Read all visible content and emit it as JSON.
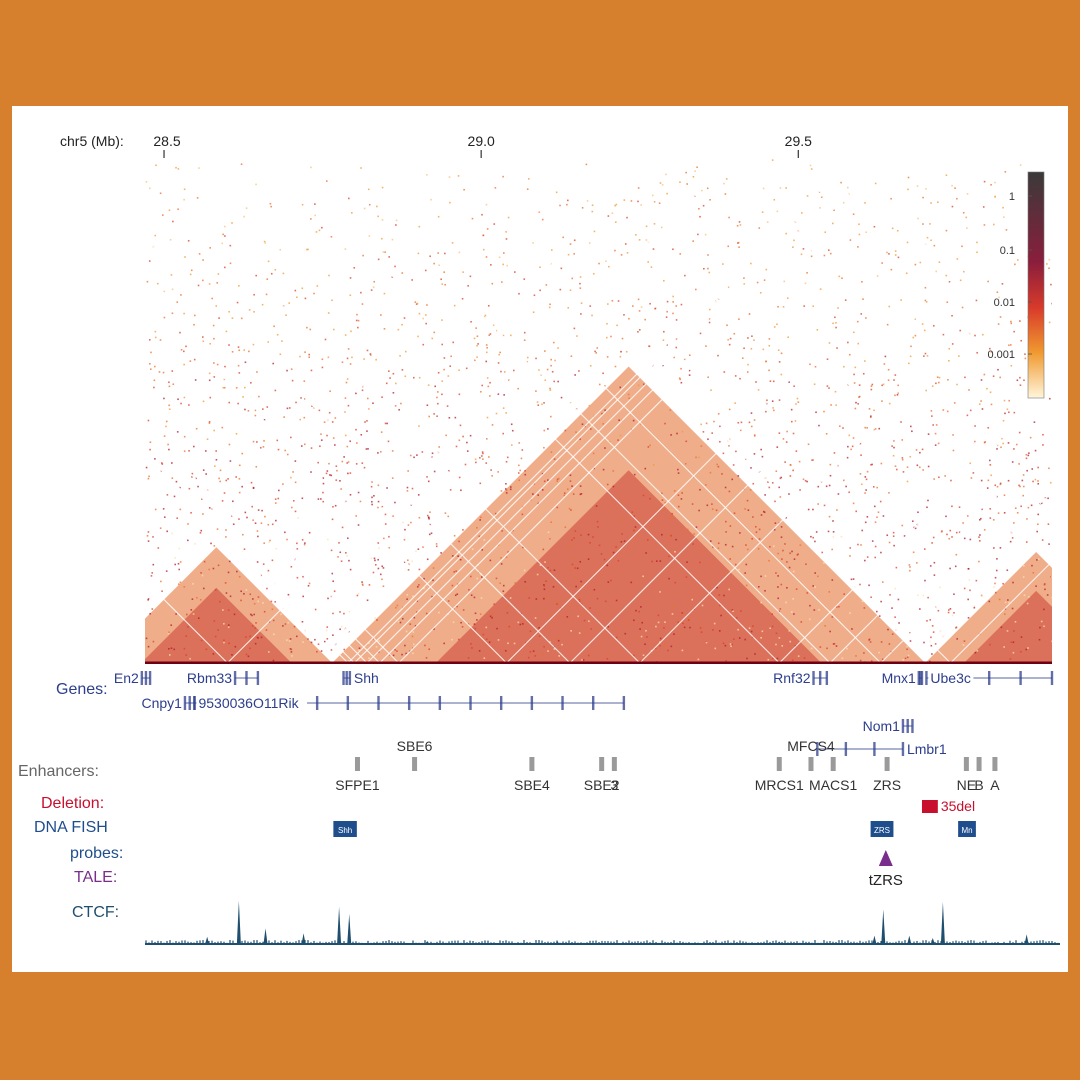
{
  "axis": {
    "chrom_label": "chr5 (Mb):",
    "ticks": [
      {
        "label": "28.5",
        "mb": 28.5
      },
      {
        "label": "29.0",
        "mb": 29.0
      },
      {
        "label": "29.5",
        "mb": 29.5
      }
    ],
    "range_mb": [
      28.47,
      29.9
    ]
  },
  "colorbar": {
    "ticks": [
      "1",
      "0.1",
      "0.01",
      "0.001"
    ],
    "colors": [
      "#3a3a3a",
      "#8a1e3c",
      "#d83a2a",
      "#f09a30",
      "#fff6dc"
    ]
  },
  "track_labels": {
    "genes": "Genes:",
    "enhancers": "Enhancers:",
    "deletion": "Deletion:",
    "dna_fish_1": "DNA FISH",
    "dna_fish_2": "probes:",
    "tale": "TALE:",
    "ctcf": "CTCF:"
  },
  "track_colors": {
    "genes": "#2c3e8c",
    "enhancers": "#666666",
    "deletion": "#c8102e",
    "dna_fish": "#1f4e8c",
    "tale": "#7a2e8c",
    "ctcf": "#1f4e6e"
  },
  "genes": [
    {
      "name": "En2",
      "start": 28.465,
      "end": 28.478,
      "row": 0,
      "label_side": "left"
    },
    {
      "name": "Rbm33",
      "start": 28.612,
      "end": 28.648,
      "row": 0,
      "label_side": "left"
    },
    {
      "name": "Shh",
      "start": 28.783,
      "end": 28.793,
      "row": 0,
      "label_side": "right"
    },
    {
      "name": "Rnf32",
      "start": 29.524,
      "end": 29.545,
      "row": 0,
      "label_side": "left"
    },
    {
      "name": "Mnx1",
      "start": 29.69,
      "end": 29.695,
      "row": 0,
      "label_side": "left"
    },
    {
      "name": "Ube3c",
      "start": 29.702,
      "end": 29.9,
      "row": 0,
      "label_side": "inside"
    },
    {
      "name": "Cnpy1",
      "start": 28.533,
      "end": 28.548,
      "row": 1,
      "label_side": "left"
    },
    {
      "name": "9530036O11Rik",
      "start": 28.548,
      "end": 29.225,
      "row": 1,
      "label_side": "inside"
    },
    {
      "name": "Nom1",
      "start": 29.665,
      "end": 29.68,
      "row": 2,
      "label_side": "left"
    },
    {
      "name": "Lmbr1",
      "start": 29.53,
      "end": 29.665,
      "row": 3,
      "label_side": "right"
    }
  ],
  "enhancers": [
    {
      "name": "SBE6",
      "pos": 28.895,
      "row": "top"
    },
    {
      "name": "SFPE1",
      "pos": 28.805,
      "row": "bottom"
    },
    {
      "name": "SBE4",
      "pos": 29.08,
      "row": "bottom"
    },
    {
      "name": "SBE2",
      "pos": 29.19,
      "row": "bottom"
    },
    {
      "name": "3",
      "pos": 29.21,
      "row": "bottom"
    },
    {
      "name": "MFCS4",
      "pos": 29.52,
      "row": "top"
    },
    {
      "name": "MRCS1",
      "pos": 29.47,
      "row": "bottom"
    },
    {
      "name": "MACS1",
      "pos": 29.555,
      "row": "bottom"
    },
    {
      "name": "ZRS",
      "pos": 29.64,
      "row": "bottom"
    },
    {
      "name": "NE",
      "pos": 29.765,
      "row": "bottom"
    },
    {
      "name": "B",
      "pos": 29.785,
      "row": "bottom"
    },
    {
      "name": "A",
      "pos": 29.81,
      "row": "bottom"
    }
  ],
  "deletion": {
    "name": "35del",
    "start": 29.695,
    "end": 29.72
  },
  "fish_probes": [
    {
      "name": "Shh",
      "start": 28.767,
      "end": 28.804
    },
    {
      "name": "ZRS",
      "start": 29.614,
      "end": 29.65
    },
    {
      "name": "Mn",
      "start": 29.752,
      "end": 29.78
    }
  ],
  "tale": {
    "name": "tZRS",
    "pos": 29.638
  },
  "ctcf_peaks": [
    {
      "pos": 28.568,
      "height": 0.12
    },
    {
      "pos": 28.618,
      "height": 0.72
    },
    {
      "pos": 28.66,
      "height": 0.26
    },
    {
      "pos": 28.72,
      "height": 0.18
    },
    {
      "pos": 28.776,
      "height": 0.62
    },
    {
      "pos": 28.792,
      "height": 0.5
    },
    {
      "pos": 28.915,
      "height": 0.05
    },
    {
      "pos": 29.12,
      "height": 0.05
    },
    {
      "pos": 29.47,
      "height": 0.04
    },
    {
      "pos": 29.62,
      "height": 0.14
    },
    {
      "pos": 29.634,
      "height": 0.58
    },
    {
      "pos": 29.675,
      "height": 0.14
    },
    {
      "pos": 29.712,
      "height": 0.1
    },
    {
      "pos": 29.728,
      "height": 0.7
    },
    {
      "pos": 29.86,
      "height": 0.16
    }
  ],
  "tads": [
    {
      "start": 28.4,
      "end": 28.765
    },
    {
      "start": 28.765,
      "end": 29.7
    },
    {
      "start": 29.7,
      "end": 30.05
    }
  ]
}
